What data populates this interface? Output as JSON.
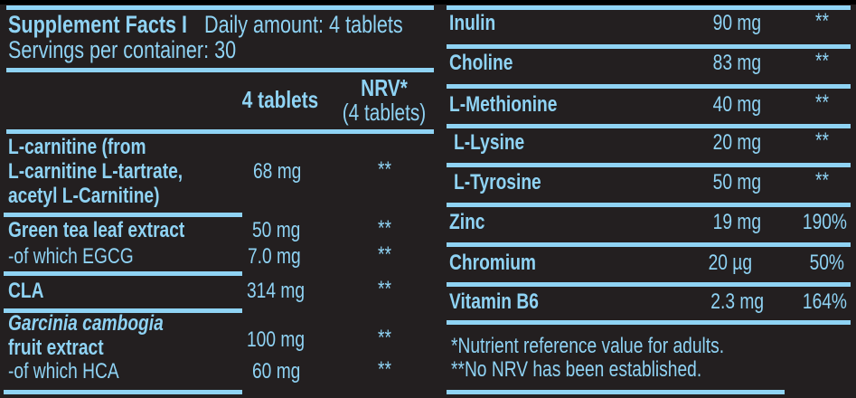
{
  "colors": {
    "background": "#231f20",
    "text": "#8fd3f4",
    "rules": "#8fd3f4"
  },
  "header": {
    "title": "Supplement Facts I",
    "daily_amount": "Daily amount: 4 tablets",
    "servings": "Servings per container: 30",
    "col_amount": "4 tablets",
    "col_nrv": "NRV*",
    "col_nrv_sub": "(4 tablets)"
  },
  "left_rows": [
    {
      "name_lines": [
        "L-carnitine (from",
        "L-carnitine L-tartrate,",
        "acetyl L-Carnitine)"
      ],
      "amount": "68 mg",
      "nrv": "**"
    },
    {
      "name": "Green tea leaf extract",
      "amount": "50 mg",
      "nrv": "**",
      "sub": {
        "name": "-of which EGCG",
        "amount": "7.0 mg",
        "nrv": "**"
      }
    },
    {
      "name": "CLA",
      "amount": "314 mg",
      "nrv": "**"
    },
    {
      "name_lines": [
        "Garcinia cambogia",
        "fruit extract"
      ],
      "amount": "100 mg",
      "nrv": "**",
      "sub": {
        "name": "-of which HCA",
        "amount": "60 mg",
        "nrv": "**"
      }
    }
  ],
  "right_rows": [
    {
      "name": "Inulin",
      "amount": "90 mg",
      "nrv": "**"
    },
    {
      "name": "Choline",
      "amount": "83 mg",
      "nrv": "**"
    },
    {
      "name": "L-Methionine",
      "amount": "40 mg",
      "nrv": "**"
    },
    {
      "name": "L-Lysine",
      "amount": "20 mg",
      "nrv": "**"
    },
    {
      "name": "L-Tyrosine",
      "amount": "50 mg",
      "nrv": "**"
    },
    {
      "name": "Zinc",
      "amount": "19 mg",
      "nrv": "190%"
    },
    {
      "name": "Chromium",
      "amount": "20 µg",
      "nrv": "50%"
    },
    {
      "name": "Vitamin B6",
      "amount": "2.3 mg",
      "nrv": "164%"
    }
  ],
  "footnotes": [
    "*Nutrient reference value for adults.",
    "**No NRV has been established."
  ]
}
